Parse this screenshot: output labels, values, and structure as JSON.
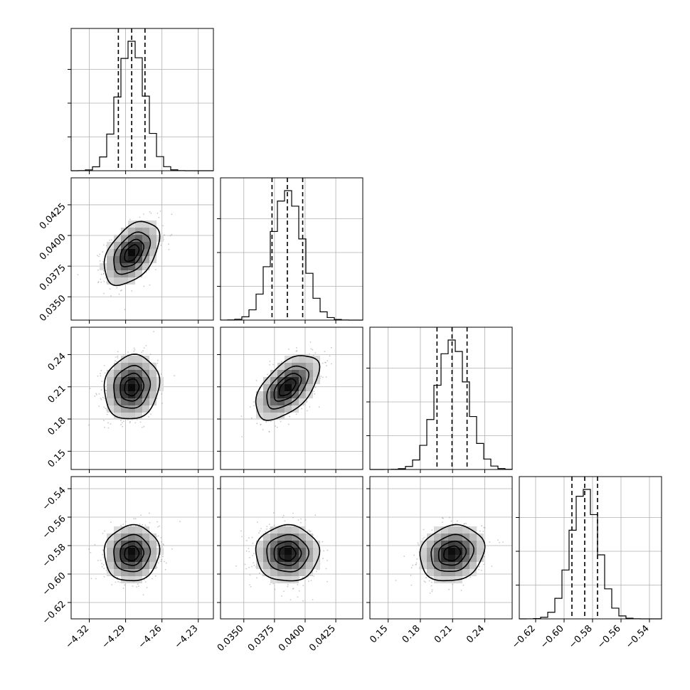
{
  "chart_data": {
    "type": "corner",
    "params": [
      {
        "range": [
          -4.335,
          -4.2175
        ],
        "ticks": [
          "−4.32",
          "−4.29",
          "−4.26",
          "−4.23"
        ],
        "tick_values": [
          -4.32,
          -4.29,
          -4.26,
          -4.23
        ],
        "mean": -4.285,
        "sd": 0.011,
        "quantiles": [
          -4.296,
          -4.285,
          -4.274
        ]
      },
      {
        "range": [
          0.0331,
          0.0447
        ],
        "ticks": [
          "0.0350",
          "0.0375",
          "0.0400",
          "0.0425"
        ],
        "tick_values": [
          0.035,
          0.0375,
          0.04,
          0.0425
        ],
        "mean": 0.03855,
        "sd": 0.00125,
        "quantiles": [
          0.0373,
          0.03855,
          0.0398
        ]
      },
      {
        "range": [
          0.133,
          0.2655
        ],
        "ticks": [
          "0.15",
          "0.18",
          "0.21",
          "0.24"
        ],
        "tick_values": [
          0.15,
          0.18,
          0.21,
          0.24
        ],
        "mean": 0.2095,
        "sd": 0.0145,
        "quantiles": [
          0.1955,
          0.2095,
          0.2235
        ]
      },
      {
        "range": [
          -0.6315,
          -0.5315
        ],
        "ticks": [
          "−0.62",
          "−0.60",
          "−0.58",
          "−0.56",
          "−0.54"
        ],
        "tick_values": [
          -0.62,
          -0.6,
          -0.58,
          -0.56,
          -0.54
        ],
        "mean": -0.5855,
        "sd": 0.0095,
        "quantiles": [
          -0.5945,
          -0.5855,
          -0.5765
        ]
      }
    ],
    "correlations": {
      "1-0": 0.45,
      "2-0": 0.1,
      "2-1": 0.55,
      "3-0": 0.05,
      "3-1": 0.0,
      "3-2": 0.15
    },
    "histogram_bins": 20,
    "contour_levels_sigma": [
      0.5,
      1.0,
      1.5,
      2.0
    ],
    "grid": true
  }
}
